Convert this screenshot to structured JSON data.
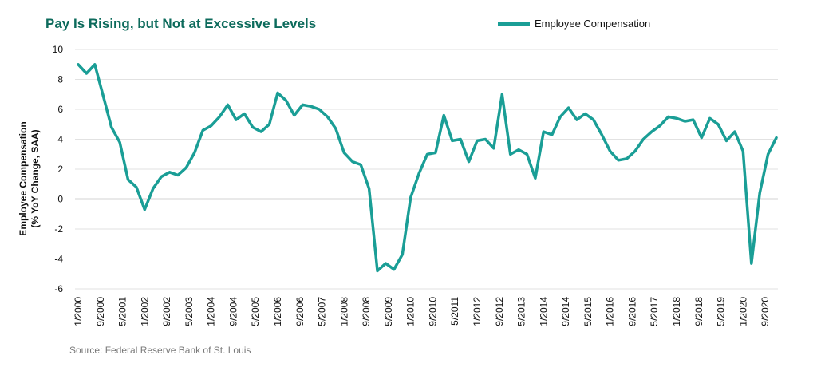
{
  "chart_data": {
    "type": "line",
    "title": "Pay Is Rising, but Not at Excessive Levels",
    "ylabel_line1": "Employee Compensation",
    "ylabel_line2": "(% YoY Change, SAA)",
    "ylim": [
      -6,
      10
    ],
    "yticks": [
      10,
      8,
      6,
      4,
      2,
      0,
      -2,
      -4,
      -6
    ],
    "grid": true,
    "legend_position": "top-right",
    "x_tick_labels": [
      "1/2000",
      "9/2000",
      "5/2001",
      "1/2002",
      "9/2002",
      "5/2003",
      "1/2004",
      "9/2004",
      "5/2005",
      "1/2006",
      "9/2006",
      "5/2007",
      "1/2008",
      "9/2008",
      "5/2009",
      "1/2010",
      "9/2010",
      "5/2011",
      "1/2012",
      "9/2012",
      "5/2013",
      "1/2014",
      "9/2014",
      "5/2015",
      "1/2016",
      "9/2016",
      "5/2017",
      "1/2018",
      "9/2018",
      "5/2019",
      "1/2020",
      "9/2020"
    ],
    "series": [
      {
        "name": "Employee Compensation",
        "color": "#1a9e96",
        "values": [
          9.0,
          8.4,
          9.0,
          6.9,
          4.8,
          3.8,
          1.3,
          0.8,
          -0.7,
          0.7,
          1.5,
          1.8,
          1.6,
          2.1,
          3.1,
          4.6,
          4.9,
          5.5,
          6.3,
          5.3,
          5.7,
          4.8,
          4.5,
          5.0,
          7.1,
          6.6,
          5.6,
          6.3,
          6.2,
          6.0,
          5.5,
          4.7,
          3.1,
          2.5,
          2.3,
          0.7,
          -4.8,
          -4.3,
          -4.7,
          -3.7,
          0.1,
          1.7,
          3.0,
          3.1,
          5.6,
          3.9,
          4.0,
          2.5,
          3.9,
          4.0,
          3.4,
          7.0,
          3.0,
          3.3,
          3.0,
          1.4,
          4.5,
          4.3,
          5.5,
          6.1,
          5.3,
          5.7,
          5.3,
          4.3,
          3.2,
          2.6,
          2.7,
          3.2,
          4.0,
          4.5,
          4.9,
          5.5,
          5.4,
          5.2,
          5.3,
          4.1,
          5.4,
          5.0,
          3.9,
          4.5,
          3.2,
          -4.3,
          0.4,
          3.0,
          4.1
        ]
      }
    ]
  },
  "legend": {
    "label": "Employee Compensation"
  },
  "source": "Source: Federal Reserve Bank of St. Louis"
}
